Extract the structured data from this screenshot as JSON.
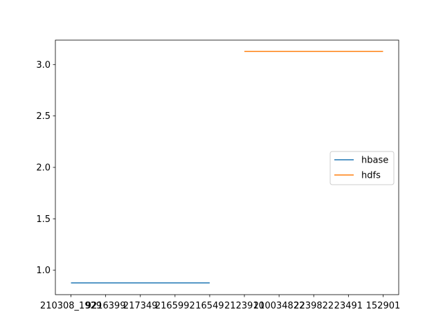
{
  "chart_data": {
    "type": "line",
    "x_categories": [
      "210308",
      "219299210399217349216599216549",
      "21239102100348222398222349",
      "152901"
    ],
    "x_tick_labels": [
      "210308_1929",
      "9216399",
      "217349",
      "2165992",
      "16549",
      "2123910",
      "210034822",
      "2239822",
      "23491",
      "152901"
    ],
    "series": [
      {
        "name": "hbase",
        "color": "#1f77b4",
        "points": [
          {
            "x": 0,
            "y": 0.877
          },
          {
            "x": 1,
            "y": 0.877
          },
          {
            "x": 2,
            "y": 0.877
          },
          {
            "x": 3,
            "y": 0.877
          },
          {
            "x": 4,
            "y": 0.877
          }
        ]
      },
      {
        "name": "hdfs",
        "color": "#ff7f0e",
        "points": [
          {
            "x": 5,
            "y": 3.127
          },
          {
            "x": 6,
            "y": 3.127
          },
          {
            "x": 7,
            "y": 3.127
          },
          {
            "x": 8,
            "y": 3.127
          },
          {
            "x": 9,
            "y": 3.127
          }
        ]
      }
    ],
    "y_ticks": [
      "1.0",
      "1.5",
      "2.0",
      "2.5",
      "3.0"
    ],
    "y_tick_values": [
      1.0,
      1.5,
      2.0,
      2.5,
      3.0
    ],
    "xlim": [
      -0.45,
      9.45
    ],
    "ylim": [
      0.7625,
      3.2375
    ],
    "grid": false,
    "legend_position": "center-right"
  }
}
